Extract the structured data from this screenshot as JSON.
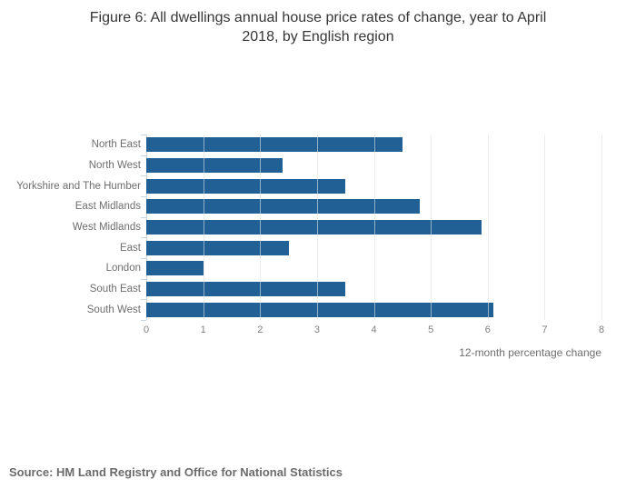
{
  "title": {
    "line1": "Figure 6: All dwellings annual house price rates of change, year to April",
    "line2": "2018, by English region"
  },
  "source": "Source: HM Land Registry and Office for National Statistics",
  "chart_data": {
    "type": "bar",
    "orientation": "horizontal",
    "title": "Figure 6: All dwellings annual house price rates of change, year to April 2018, by English region",
    "categories": [
      "North East",
      "North West",
      "Yorkshire and The Humber",
      "East Midlands",
      "West Midlands",
      "East",
      "London",
      "South East",
      "South West"
    ],
    "values": [
      4.5,
      2.4,
      3.5,
      4.8,
      5.9,
      2.5,
      1.0,
      3.5,
      6.1
    ],
    "xlabel": "12-month percentage change",
    "ylabel": "",
    "xlim": [
      0,
      8
    ],
    "xticks": [
      0,
      1,
      2,
      3,
      4,
      5,
      6,
      7,
      8
    ],
    "grid": "vertical",
    "legend": "none",
    "bar_color": "#206095",
    "gridline_color": "#d9d9d9",
    "axis_line_color": "#c9d6e2"
  }
}
